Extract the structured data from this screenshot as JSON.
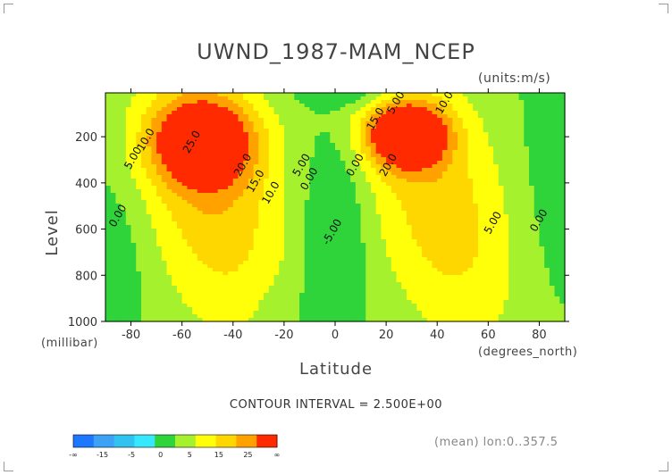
{
  "chart_data": {
    "type": "heatmap",
    "title": "UWND_1987-MAM_NCEP",
    "units_label": "(units:m/s)",
    "xlabel": "Latitude",
    "x_unit_label": "(degrees_north)",
    "ylabel": "Level",
    "y_unit_label": "(millibar)",
    "xlim": [
      -90,
      90
    ],
    "ylim": [
      1000,
      10
    ],
    "x_ticks": [
      "-80",
      "-60",
      "-40",
      "-20",
      "0",
      "20",
      "40",
      "60",
      "80"
    ],
    "x_tick_values": [
      -80,
      -60,
      -40,
      -20,
      0,
      20,
      40,
      60,
      80
    ],
    "y_ticks": [
      "200",
      "400",
      "600",
      "800",
      "1000"
    ],
    "y_tick_values": [
      200,
      400,
      600,
      800,
      1000
    ],
    "contour_interval_text": "CONTOUR INTERVAL = 2.500E+00",
    "subset_text": "(mean) lon:0..357.5",
    "jets": [
      {
        "lat": -52,
        "level": 220,
        "speed": 27
      },
      {
        "lat": 28,
        "level": 190,
        "speed": 31
      }
    ],
    "contour_labels": [
      {
        "text": "25.0",
        "lat": -55,
        "level": 230
      },
      {
        "text": "20.0",
        "lat": -35,
        "level": 330
      },
      {
        "text": "15.0",
        "lat": -30,
        "level": 400
      },
      {
        "text": "10.0",
        "lat": -24,
        "level": 450
      },
      {
        "text": "10.0",
        "lat": -73,
        "level": 220
      },
      {
        "text": "5.00",
        "lat": -78,
        "level": 300
      },
      {
        "text": "0.00",
        "lat": -84,
        "level": 550
      },
      {
        "text": "5.00",
        "lat": -12,
        "level": 330
      },
      {
        "text": "0.00",
        "lat": -9,
        "level": 390
      },
      {
        "text": "0.00",
        "lat": 9,
        "level": 330
      },
      {
        "text": "-5.00",
        "lat": 0,
        "level": 620
      },
      {
        "text": "15.0",
        "lat": 17,
        "level": 130
      },
      {
        "text": "5.00",
        "lat": 25,
        "level": 60
      },
      {
        "text": "10.0",
        "lat": 44,
        "level": 60
      },
      {
        "text": "20.0",
        "lat": 22,
        "level": 330
      },
      {
        "text": "5.00",
        "lat": 63,
        "level": 580
      },
      {
        "text": "0.00",
        "lat": 81,
        "level": 570
      }
    ],
    "colorbar": {
      "boundaries": [
        -20,
        -15,
        -10,
        -5,
        0,
        5,
        10,
        15,
        20,
        25
      ],
      "colors": [
        "#1e78ff",
        "#3ca2f5",
        "#31c3f0",
        "#36e8ff",
        "#2fd33a",
        "#a6f12e",
        "#ffff0a",
        "#ffd700",
        "#ffa200",
        "#ff2a00"
      ],
      "tick_labels": [
        "-∞",
        "-15",
        "-5",
        "0",
        "5",
        "15",
        "25",
        "∞"
      ]
    }
  }
}
